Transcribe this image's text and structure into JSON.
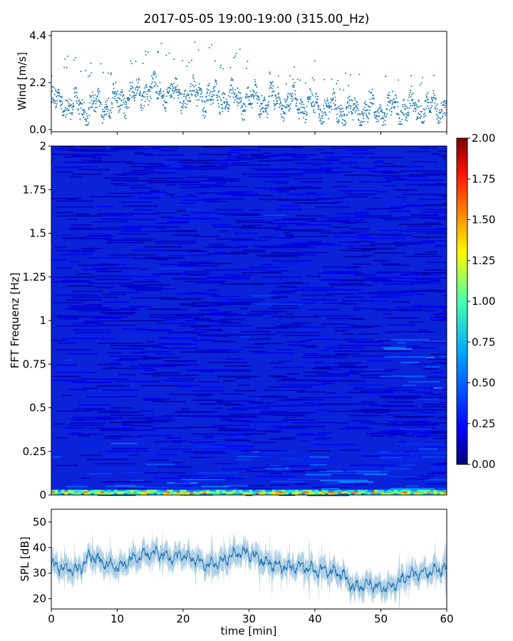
{
  "title": "2017-05-05 19:00-19:00 (315.00_Hz)",
  "chart_data": [
    {
      "type": "scatter",
      "name": "wind",
      "ylabel": "Wind [m/s]",
      "ylim": [
        -0.1,
        4.6
      ],
      "yticks": [
        0.0,
        2.2,
        4.4
      ],
      "ytick_labels": [
        "0.0",
        "2.2",
        "4.4"
      ],
      "xlim": [
        0,
        60
      ],
      "xticks": [
        0,
        10,
        20,
        30,
        40,
        50,
        60
      ],
      "grid": false,
      "color": "#1f77b4",
      "x_min": [
        0,
        5,
        10,
        15,
        20,
        25,
        30,
        35,
        40,
        45,
        50,
        55,
        60
      ],
      "wind_mean_ms": [
        1.4,
        1.0,
        1.3,
        1.9,
        1.6,
        1.5,
        1.4,
        1.3,
        1.1,
        0.8,
        0.9,
        1.0,
        1.1
      ],
      "wind_max_ms": [
        3.6,
        3.5,
        3.2,
        4.3,
        4.3,
        4.3,
        3.6,
        2.8,
        3.3,
        2.6,
        2.6,
        2.6,
        2.9
      ],
      "wind_min_ms": [
        0.5,
        0.2,
        0.4,
        0.6,
        0.5,
        0.5,
        0.4,
        0.4,
        0.3,
        0.2,
        0.2,
        0.3,
        0.3
      ]
    },
    {
      "type": "heatmap",
      "name": "spectrogram",
      "ylabel": "FFT Frequenz [Hz]",
      "xlim": [
        0,
        60
      ],
      "ylim": [
        0,
        2
      ],
      "yticks": [
        0,
        0.25,
        0.5,
        0.75,
        1,
        1.25,
        1.5,
        1.75,
        2
      ],
      "ytick_labels": [
        "0",
        "0.25",
        "0.5",
        "0.75",
        "1",
        "1.25",
        "1.5",
        "1.75",
        "2"
      ],
      "colormap": "jet",
      "colorbar_range": [
        0.0,
        2.0
      ],
      "colorbar_ticks": [
        "0.00",
        "0.25",
        "0.50",
        "0.75",
        "1.00",
        "1.25",
        "1.50",
        "1.75",
        "2.00"
      ],
      "low_freq_band_hz": [
        0,
        0.03
      ],
      "low_freq_band_level": 1.9,
      "background_level": 0.15
    },
    {
      "type": "line",
      "name": "spl",
      "ylabel": "SPL [dB]",
      "xlabel": "time [min]",
      "xlim": [
        0,
        60
      ],
      "ylim": [
        16,
        55
      ],
      "yticks": [
        20,
        30,
        40,
        50
      ],
      "ytick_labels": [
        "20",
        "30",
        "40",
        "50"
      ],
      "xticks": [
        0,
        10,
        20,
        30,
        40,
        50,
        60
      ],
      "xtick_labels": [
        "0",
        "10",
        "20",
        "30",
        "40",
        "50",
        "60"
      ],
      "color": "#1f77b4",
      "x": [
        0,
        2,
        4,
        6,
        8,
        10,
        12,
        14,
        16,
        18,
        20,
        22,
        24,
        26,
        28,
        30,
        32,
        34,
        36,
        38,
        40,
        42,
        44,
        46,
        48,
        50,
        52,
        54,
        56,
        58,
        60
      ],
      "y": [
        33,
        32,
        31,
        37,
        34,
        32,
        35,
        37,
        38,
        36,
        37,
        35,
        33,
        35,
        38,
        38,
        35,
        33,
        32,
        33,
        31,
        31,
        30,
        24,
        26,
        24,
        25,
        29,
        30,
        31,
        32
      ]
    }
  ]
}
